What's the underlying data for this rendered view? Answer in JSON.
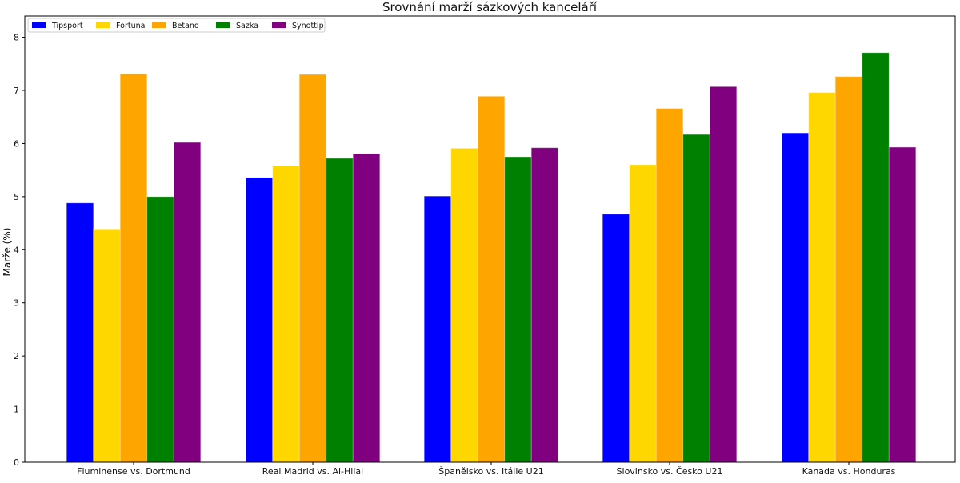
{
  "chart_data": {
    "type": "bar",
    "title": "Srovnání marží sázkových kanceláří",
    "xlabel": "",
    "ylabel": "Marže (%)",
    "ylim": [
      0,
      8.4
    ],
    "yticks": [
      0,
      1,
      2,
      3,
      4,
      5,
      6,
      7,
      8
    ],
    "grid": false,
    "legend_position": "top-left",
    "categories": [
      "Fluminense vs. Dortmund",
      "Real Madrid vs. Al-Hilal",
      "Španělsko vs. Itálie U21",
      "Slovinsko vs. Česko U21",
      "Kanada vs. Honduras"
    ],
    "series": [
      {
        "name": "Tipsport",
        "color": "#0000ff",
        "values": [
          4.88,
          5.36,
          5.01,
          4.67,
          6.2
        ]
      },
      {
        "name": "Fortuna",
        "color": "#ffd700",
        "values": [
          4.39,
          5.58,
          5.91,
          5.6,
          6.96
        ]
      },
      {
        "name": "Betano",
        "color": "#ffa500",
        "values": [
          7.31,
          7.3,
          6.89,
          6.66,
          7.26
        ]
      },
      {
        "name": "Sazka",
        "color": "#008000",
        "values": [
          5.0,
          5.72,
          5.75,
          6.17,
          7.71
        ]
      },
      {
        "name": "Synottip",
        "color": "#800080",
        "values": [
          6.02,
          5.81,
          5.92,
          7.07,
          5.93
        ]
      }
    ]
  }
}
